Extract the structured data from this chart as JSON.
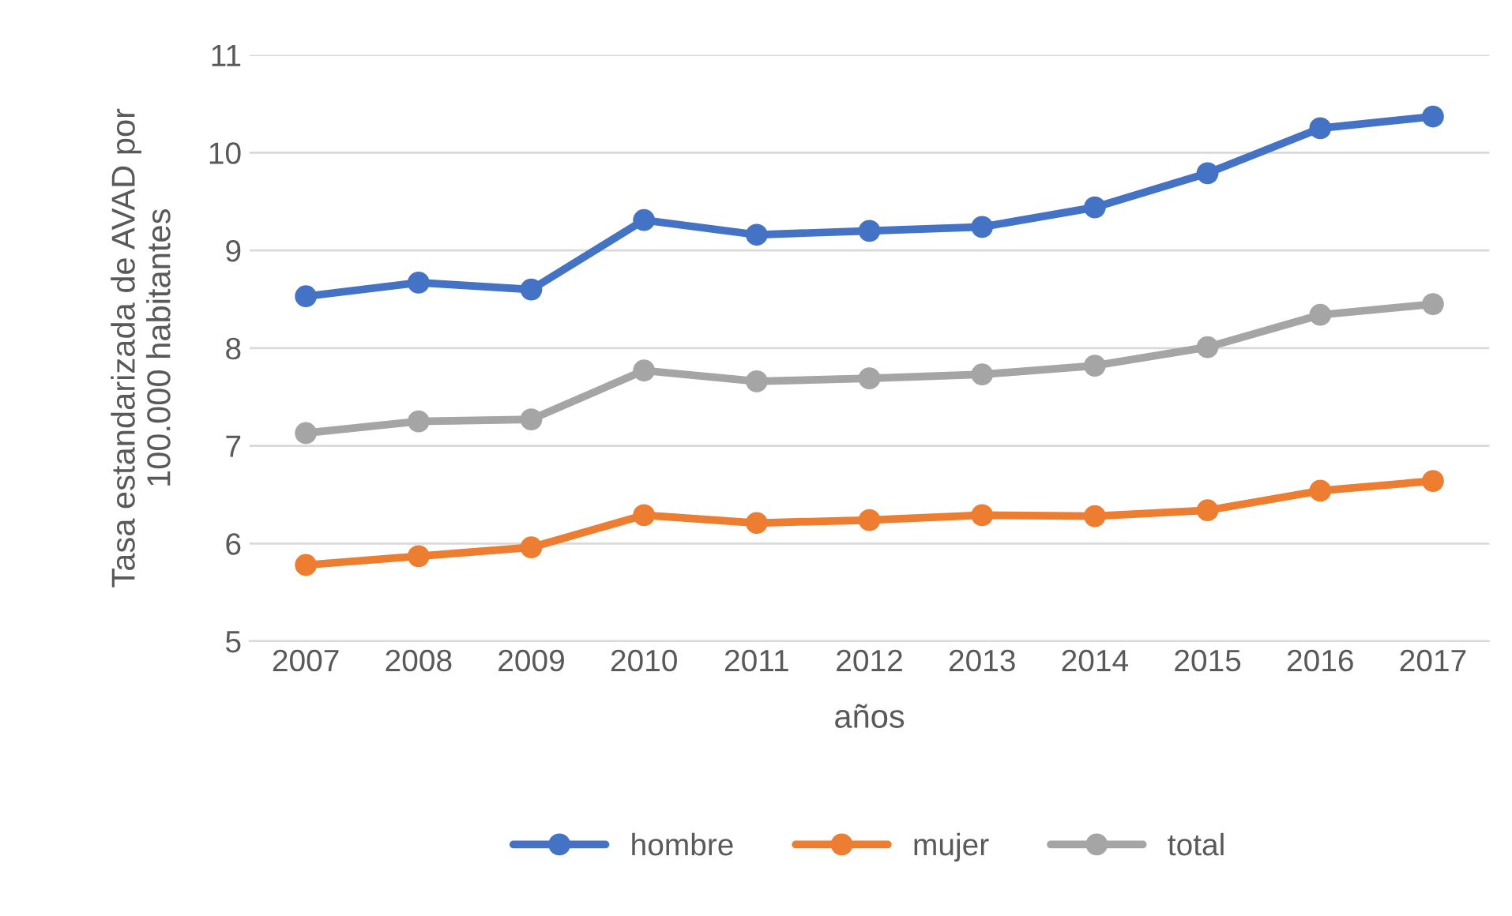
{
  "chart_data": {
    "type": "line",
    "xlabel": "años",
    "ylabel": "Tasa estandarizada de AVAD por\n100.000 habitantes",
    "categories": [
      "2007",
      "2008",
      "2009",
      "2010",
      "2011",
      "2012",
      "2013",
      "2014",
      "2015",
      "2016",
      "2017"
    ],
    "series": [
      {
        "name": "hombre",
        "color": "#4472c4",
        "values": [
          8.53,
          8.67,
          8.6,
          9.31,
          9.16,
          9.2,
          9.24,
          9.44,
          9.79,
          10.25,
          10.37
        ]
      },
      {
        "name": "mujer",
        "color": "#ed7d31",
        "values": [
          5.78,
          5.87,
          5.96,
          6.29,
          6.21,
          6.24,
          6.29,
          6.28,
          6.34,
          6.54,
          6.64
        ]
      },
      {
        "name": "total",
        "color": "#a5a5a5",
        "values": [
          7.13,
          7.25,
          7.27,
          7.77,
          7.66,
          7.69,
          7.73,
          7.82,
          8.01,
          8.34,
          8.45
        ]
      }
    ],
    "ylim": [
      5,
      11
    ],
    "yticks": [
      5,
      6,
      7,
      8,
      9,
      10,
      11
    ],
    "grid": "y",
    "legend": "bottom",
    "marker": "circle",
    "line_style": "solid"
  }
}
